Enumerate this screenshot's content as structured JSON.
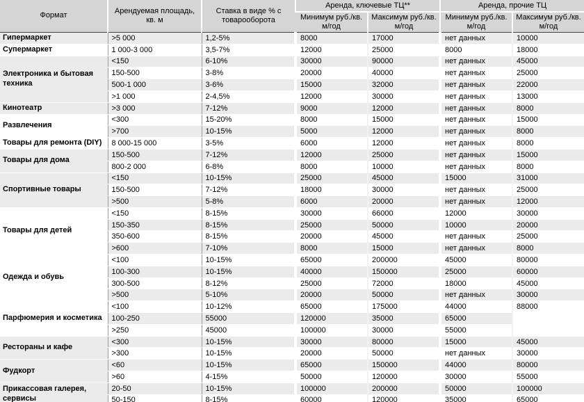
{
  "colors": {
    "header_bg": "#d5d5d5",
    "row_stripe": "#ebebeb",
    "row_white": "#ffffff",
    "header_divider": "#3f3f3f",
    "column_divider": "#9b9b9b"
  },
  "table": {
    "headers": {
      "format": "Формат",
      "area": "Арендуемая площадь,\nкв. м",
      "rate": "Ставка в виде % с\nтоварооборота",
      "group_key": "Аренда, ключевые ТЦ**",
      "group_other": "Аренда, прочие ТЦ",
      "min_key": "Минимум руб./кв.\nм/год",
      "max_key": "Максимум руб./кв.\nм/год",
      "min_other": "Минимум руб./кв.\nм/год",
      "max_other": "Максимум руб./кв.\nм/год"
    },
    "no_data_label": "нет данных",
    "groups": [
      {
        "format": "Гипермаркет",
        "rows": [
          [
            ">5 000",
            "1,2-5%",
            "8000",
            "17000",
            "нет данных",
            "10000"
          ]
        ]
      },
      {
        "format": "Супермаркет",
        "rows": [
          [
            "1 000-3 000",
            "3,5-7%",
            "12000",
            "25000",
            "8000",
            "18000"
          ]
        ]
      },
      {
        "format": "Электроника и бытовая\nтехника",
        "rows": [
          [
            "<150",
            "6-10%",
            "30000",
            "90000",
            "нет данных",
            "45000"
          ],
          [
            "150-500",
            "3-8%",
            "20000",
            "40000",
            "нет данных",
            "25000"
          ],
          [
            "500-1 000",
            "3-6%",
            "15000",
            "32000",
            "нет данных",
            "22000"
          ],
          [
            ">1 000",
            "2-4,5%",
            "12000",
            "30000",
            "нет данных",
            "13000"
          ]
        ]
      },
      {
        "format": "Кинотеатр",
        "rows": [
          [
            ">3 000",
            "7-12%",
            "9000",
            "12000",
            "нет данных",
            "8000"
          ]
        ]
      },
      {
        "format": "Развлечения",
        "rows": [
          [
            "<300",
            "15-20%",
            "8000",
            "15000",
            "нет данных",
            "15000"
          ],
          [
            ">700",
            "10-15%",
            "5000",
            "12000",
            "нет данных",
            "8000"
          ]
        ]
      },
      {
        "format": "Товары для ремонта (DIY)",
        "rows": [
          [
            "8 000-15 000",
            "3-5%",
            "6000",
            "12000",
            "нет данных",
            "8000"
          ]
        ]
      },
      {
        "format": "Товары для дома",
        "rows": [
          [
            "150-500",
            "7-12%",
            "12000",
            "25000",
            "нет данных",
            "15000"
          ],
          [
            "800-2 000",
            "6-8%",
            "8000",
            "10000",
            "нет данных",
            "8000"
          ]
        ]
      },
      {
        "format": "Спортивные товары",
        "rows": [
          [
            "<150",
            "10-15%",
            "25000",
            "45000",
            "15000",
            "31000"
          ],
          [
            "150-500",
            "7-12%",
            "18000",
            "30000",
            "нет данных",
            "25000"
          ],
          [
            ">500",
            "5-8%",
            "6000",
            "20000",
            "нет данных",
            "12000"
          ]
        ]
      },
      {
        "format": "Товары для детей",
        "rows": [
          [
            "<150",
            "8-15%",
            "30000",
            "66000",
            "12000",
            "30000"
          ],
          [
            "150-350",
            "8-15%",
            "25000",
            "50000",
            "10000",
            "20000"
          ],
          [
            "350-600",
            "8-15%",
            "20000",
            "45000",
            "нет данных",
            "25000"
          ],
          [
            ">600",
            "7-10%",
            "8000",
            "15000",
            "нет данных",
            "8000"
          ]
        ]
      },
      {
        "format": "Одежда и обувь",
        "rows": [
          [
            "<100",
            "10-15%",
            "65000",
            "200000",
            "45000",
            "80000"
          ],
          [
            "100-300",
            "10-15%",
            "40000",
            "150000",
            "25000",
            "60000"
          ],
          [
            "300-500",
            "8-12%",
            "25000",
            "72000",
            "18000",
            "45000"
          ],
          [
            ">500",
            "5-10%",
            "20000",
            "50000",
            "нет данных",
            "30000"
          ]
        ]
      },
      {
        "format": "Парфюмерия и косметика",
        "rows": [
          [
            "<100",
            "10-12%",
            "65000",
            "175000",
            "44000",
            "88000"
          ],
          [
            "100-250",
            "55000",
            "120000",
            "35000",
            "65000",
            ""
          ],
          [
            ">250",
            "45000",
            "100000",
            "30000",
            "55000",
            ""
          ]
        ]
      },
      {
        "format": "Рестораны и кафе",
        "rows": [
          [
            "<300",
            "10-15%",
            "30000",
            "80000",
            "15000",
            "45000"
          ],
          [
            ">300",
            "10-15%",
            "20000",
            "50000",
            "нет данных",
            "30000"
          ]
        ]
      },
      {
        "format": "Фудкорт",
        "rows": [
          [
            "<60",
            "10-15%",
            "65000",
            "150000",
            "44000",
            "80000"
          ],
          [
            ">60",
            "4-15%",
            "50000",
            "120000",
            "30000",
            "55000"
          ]
        ]
      },
      {
        "format": "Прикассовая галерея,\nсервисы",
        "rows": [
          [
            "20-50",
            "10-15%",
            "100000",
            "200000",
            "50000",
            "100000"
          ],
          [
            "50-150",
            "8-15%",
            "60000",
            "120000",
            "35000",
            "65000"
          ]
        ]
      }
    ]
  }
}
